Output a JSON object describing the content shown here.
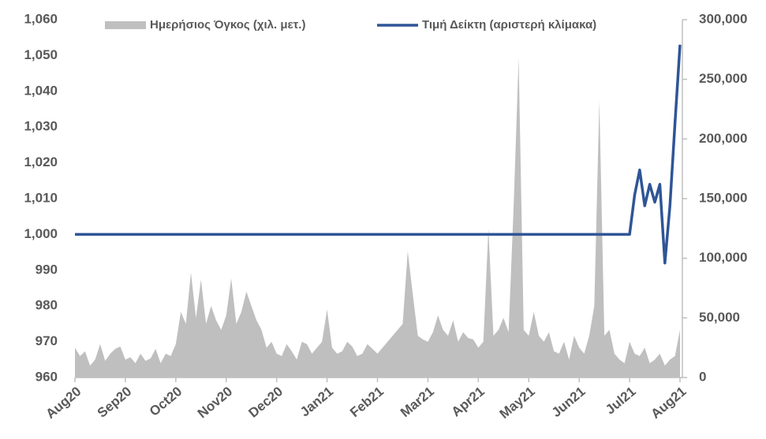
{
  "chart_data": {
    "type": "area-line",
    "categories": [
      "Aug20",
      null,
      null,
      null,
      null,
      null,
      null,
      null,
      null,
      null,
      "Sep20",
      null,
      null,
      null,
      null,
      null,
      null,
      null,
      null,
      null,
      "Oct20",
      null,
      null,
      null,
      null,
      null,
      null,
      null,
      null,
      null,
      "Nov20",
      null,
      null,
      null,
      null,
      null,
      null,
      null,
      null,
      null,
      "Dec20",
      null,
      null,
      null,
      null,
      null,
      null,
      null,
      null,
      null,
      "Jan21",
      null,
      null,
      null,
      null,
      null,
      null,
      null,
      null,
      null,
      "Feb21",
      null,
      null,
      null,
      null,
      null,
      null,
      null,
      null,
      null,
      "Mar21",
      null,
      null,
      null,
      null,
      null,
      null,
      null,
      null,
      null,
      "Apr21",
      null,
      null,
      null,
      null,
      null,
      null,
      null,
      null,
      null,
      "May21",
      null,
      null,
      null,
      null,
      null,
      null,
      null,
      null,
      null,
      "Jun21",
      null,
      null,
      null,
      null,
      null,
      null,
      null,
      null,
      null,
      "Jul21",
      null,
      null,
      null,
      null,
      null,
      null,
      null,
      null,
      null,
      "Aug21"
    ],
    "series": [
      {
        "name": "Ημερήσιος Όγκος (χιλ. μετ.)",
        "color": "#bfbfbf",
        "axis": "y2",
        "kind": "area",
        "values": [
          25000,
          18000,
          22000,
          10000,
          15000,
          28000,
          14000,
          20000,
          24000,
          26000,
          15000,
          17000,
          12000,
          20000,
          14000,
          16000,
          24000,
          12000,
          20000,
          18000,
          28000,
          55000,
          45000,
          88000,
          50000,
          82000,
          45000,
          60000,
          48000,
          40000,
          52000,
          83000,
          45000,
          55000,
          72000,
          60000,
          48000,
          40000,
          25000,
          30000,
          20000,
          18000,
          28000,
          22000,
          15000,
          30000,
          28000,
          20000,
          25000,
          30000,
          57000,
          25000,
          20000,
          22000,
          30000,
          26000,
          18000,
          20000,
          28000,
          24000,
          20000,
          25000,
          30000,
          35000,
          40000,
          45000,
          106000,
          70000,
          35000,
          32000,
          30000,
          38000,
          52000,
          40000,
          35000,
          48000,
          30000,
          38000,
          33000,
          32000,
          25000,
          30000,
          125000,
          35000,
          40000,
          50000,
          38000,
          143000,
          268000,
          40000,
          35000,
          55000,
          35000,
          30000,
          38000,
          22000,
          20000,
          30000,
          15000,
          35000,
          25000,
          20000,
          35000,
          60000,
          232000,
          35000,
          40000,
          20000,
          15000,
          12000,
          30000,
          20000,
          18000,
          25000,
          12000,
          15000,
          20000,
          10000,
          15000,
          18000,
          40000
        ]
      },
      {
        "name": "Τιμή Δείκτη (αριστερή κλίμακα)",
        "color": "#2f5597",
        "axis": "y",
        "kind": "line",
        "values": [
          1000,
          1000,
          1000,
          1000,
          1000,
          1000,
          1000,
          1000,
          1000,
          1000,
          1000,
          1000,
          1000,
          1000,
          1000,
          1000,
          1000,
          1000,
          1000,
          1000,
          1000,
          1000,
          1000,
          1000,
          1000,
          1000,
          1000,
          1000,
          1000,
          1000,
          1000,
          1000,
          1000,
          1000,
          1000,
          1000,
          1000,
          1000,
          1000,
          1000,
          1000,
          1000,
          1000,
          1000,
          1000,
          1000,
          1000,
          1000,
          1000,
          1000,
          1000,
          1000,
          1000,
          1000,
          1000,
          1000,
          1000,
          1000,
          1000,
          1000,
          1000,
          1000,
          1000,
          1000,
          1000,
          1000,
          1000,
          1000,
          1000,
          1000,
          1000,
          1000,
          1000,
          1000,
          1000,
          1000,
          1000,
          1000,
          1000,
          1000,
          1000,
          1000,
          1000,
          1000,
          1000,
          1000,
          1000,
          1000,
          1000,
          1000,
          1000,
          1000,
          1000,
          1000,
          1000,
          1000,
          1000,
          1000,
          1000,
          1000,
          1000,
          1000,
          1000,
          1000,
          1000,
          1000,
          1000,
          1000,
          1000,
          1000,
          1000,
          1011,
          1018,
          1008,
          1014,
          1009,
          1014,
          992,
          1008,
          1031,
          1053
        ]
      }
    ],
    "ylim": [
      960,
      1060
    ],
    "yticks": [
      960,
      970,
      980,
      990,
      {
        "value": 1000,
        "label": "1,000"
      },
      {
        "value": 1010,
        "label": "1,010"
      },
      {
        "value": 1020,
        "label": "1,020"
      },
      {
        "value": 1030,
        "label": "1,030"
      },
      {
        "value": 1040,
        "label": "1,040"
      },
      {
        "value": 1050,
        "label": "1,050"
      },
      {
        "value": 1060,
        "label": "1,060"
      }
    ],
    "y2lim": [
      0,
      300000
    ],
    "y2ticks": [
      0,
      {
        "value": 50000,
        "label": "50,000"
      },
      {
        "value": 100000,
        "label": "100,000"
      },
      {
        "value": 150000,
        "label": "150,000"
      },
      {
        "value": 200000,
        "label": "200,000"
      },
      {
        "value": 250000,
        "label": "250,000"
      },
      {
        "value": 300000,
        "label": "300,000"
      }
    ],
    "legend": "top"
  }
}
